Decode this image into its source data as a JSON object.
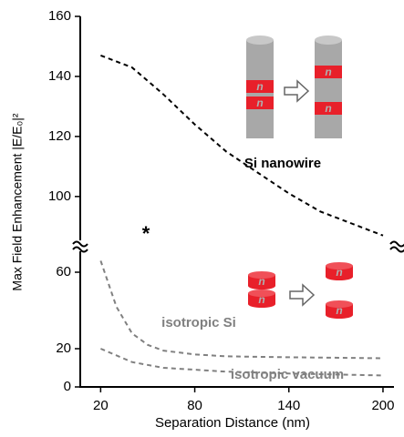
{
  "chart_data": {
    "type": "line",
    "x_label": "Separation Distance (nm)",
    "y_label": "Max Field Enhancement |E/E₀|²",
    "xlim": [
      7,
      207
    ],
    "xticks": [
      20,
      80,
      140,
      200
    ],
    "panels": [
      {
        "ylim": [
          86,
          160
        ],
        "yticks": [
          100,
          120,
          140,
          160
        ],
        "series": [
          {
            "name": "Si nanowire",
            "color": "#000000",
            "x": [
              20,
              40,
              60,
              80,
              100,
              120,
              140,
              160,
              180,
              200
            ],
            "values": [
              147,
              143,
              134,
              124,
              115,
              108,
              101,
              95,
              91,
              87
            ]
          }
        ]
      },
      {
        "ylim": [
          0,
          70
        ],
        "yticks": [
          0,
          20,
          60
        ],
        "series": [
          {
            "name": "isotropic Si",
            "color": "#808080",
            "x": [
              20,
              30,
              40,
              50,
              60,
              80,
              100,
              140,
              200
            ],
            "values": [
              66,
              42,
              28,
              22,
              19,
              17,
              16,
              15.5,
              15
            ]
          },
          {
            "name": "isotropic vacuum",
            "color": "#808080",
            "x": [
              20,
              40,
              60,
              100,
              140,
              200
            ],
            "values": [
              20,
              13,
              10,
              8,
              7,
              6
            ]
          }
        ]
      }
    ],
    "annotation": "*",
    "particle_label": "n"
  }
}
